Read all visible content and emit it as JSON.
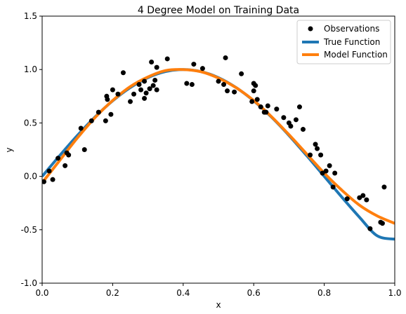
{
  "chart_data": {
    "type": "scatter",
    "title": "4 Degree Model on Training Data",
    "xlabel": "x",
    "ylabel": "y",
    "xlim": [
      0.0,
      1.0
    ],
    "ylim": [
      -1.0,
      1.5
    ],
    "x_ticks": [
      "0.0",
      "0.2",
      "0.4",
      "0.6",
      "0.8",
      "1.0"
    ],
    "y_ticks": [
      "-1.0",
      "-0.5",
      "0.0",
      "0.5",
      "1.0",
      "1.5"
    ],
    "grid": false,
    "legend_position": "top-right",
    "legend": [
      {
        "label": "Observations",
        "kind": "marker",
        "color": "#000000"
      },
      {
        "label": "True Function",
        "kind": "line",
        "color": "#1f77b4"
      },
      {
        "label": "Model Function",
        "kind": "line",
        "color": "#ff7f0e"
      }
    ],
    "series": [
      {
        "name": "Observations",
        "type": "scatter",
        "color": "#000000",
        "points": [
          [
            0.005,
            -0.05
          ],
          [
            0.02,
            0.05
          ],
          [
            0.03,
            -0.03
          ],
          [
            0.045,
            0.17
          ],
          [
            0.065,
            0.1
          ],
          [
            0.07,
            0.22
          ],
          [
            0.075,
            0.2
          ],
          [
            0.11,
            0.45
          ],
          [
            0.12,
            0.25
          ],
          [
            0.14,
            0.52
          ],
          [
            0.16,
            0.6
          ],
          [
            0.18,
            0.52
          ],
          [
            0.183,
            0.75
          ],
          [
            0.185,
            0.72
          ],
          [
            0.195,
            0.58
          ],
          [
            0.2,
            0.81
          ],
          [
            0.215,
            0.77
          ],
          [
            0.23,
            0.97
          ],
          [
            0.25,
            0.7
          ],
          [
            0.26,
            0.77
          ],
          [
            0.275,
            0.86
          ],
          [
            0.28,
            0.81
          ],
          [
            0.29,
            0.89
          ],
          [
            0.29,
            0.73
          ],
          [
            0.295,
            0.78
          ],
          [
            0.305,
            0.82
          ],
          [
            0.31,
            1.07
          ],
          [
            0.315,
            0.85
          ],
          [
            0.32,
            0.9
          ],
          [
            0.325,
            1.02
          ],
          [
            0.325,
            0.81
          ],
          [
            0.355,
            1.1
          ],
          [
            0.41,
            0.87
          ],
          [
            0.425,
            0.86
          ],
          [
            0.43,
            1.05
          ],
          [
            0.455,
            1.01
          ],
          [
            0.5,
            0.89
          ],
          [
            0.515,
            0.86
          ],
          [
            0.52,
            1.11
          ],
          [
            0.525,
            0.8
          ],
          [
            0.545,
            0.79
          ],
          [
            0.565,
            0.96
          ],
          [
            0.595,
            0.7
          ],
          [
            0.6,
            0.87
          ],
          [
            0.6,
            0.8
          ],
          [
            0.605,
            0.85
          ],
          [
            0.61,
            0.72
          ],
          [
            0.62,
            0.65
          ],
          [
            0.63,
            0.6
          ],
          [
            0.635,
            0.6
          ],
          [
            0.64,
            0.66
          ],
          [
            0.665,
            0.63
          ],
          [
            0.685,
            0.55
          ],
          [
            0.7,
            0.5
          ],
          [
            0.705,
            0.47
          ],
          [
            0.72,
            0.53
          ],
          [
            0.73,
            0.65
          ],
          [
            0.74,
            0.44
          ],
          [
            0.76,
            0.2
          ],
          [
            0.775,
            0.3
          ],
          [
            0.78,
            0.26
          ],
          [
            0.79,
            0.2
          ],
          [
            0.795,
            0.03
          ],
          [
            0.805,
            0.05
          ],
          [
            0.815,
            0.1
          ],
          [
            0.825,
            -0.1
          ],
          [
            0.83,
            0.03
          ],
          [
            0.865,
            -0.21
          ],
          [
            0.9,
            -0.2
          ],
          [
            0.91,
            -0.18
          ],
          [
            0.92,
            -0.22
          ],
          [
            0.93,
            -0.49
          ],
          [
            0.96,
            -0.43
          ],
          [
            0.965,
            -0.44
          ],
          [
            0.97,
            -0.1
          ]
        ]
      },
      {
        "name": "True Function",
        "type": "line",
        "color": "#1f77b4",
        "x": [
          0.0,
          0.05,
          0.1,
          0.15,
          0.2,
          0.25,
          0.3,
          0.35,
          0.4,
          0.45,
          0.5,
          0.55,
          0.6,
          0.65,
          0.7,
          0.75,
          0.8,
          0.85,
          0.9,
          0.95,
          1.0
        ],
        "y": [
          0.0,
          0.195,
          0.383,
          0.556,
          0.707,
          0.831,
          0.924,
          0.981,
          1.0,
          0.981,
          0.924,
          0.831,
          0.707,
          0.556,
          0.383,
          0.195,
          0.0,
          -0.195,
          -0.383,
          -0.556,
          -0.588
        ]
      },
      {
        "name": "Model Function",
        "type": "line",
        "color": "#ff7f0e",
        "x": [
          0.0,
          0.05,
          0.1,
          0.15,
          0.2,
          0.25,
          0.3,
          0.35,
          0.4,
          0.45,
          0.5,
          0.55,
          0.6,
          0.65,
          0.7,
          0.75,
          0.8,
          0.85,
          0.9,
          0.95,
          1.0
        ],
        "y": [
          -0.06,
          0.15,
          0.36,
          0.55,
          0.71,
          0.84,
          0.93,
          0.99,
          1.0,
          0.98,
          0.92,
          0.83,
          0.71,
          0.56,
          0.39,
          0.21,
          0.03,
          -0.13,
          -0.27,
          -0.37,
          -0.44
        ]
      }
    ]
  }
}
